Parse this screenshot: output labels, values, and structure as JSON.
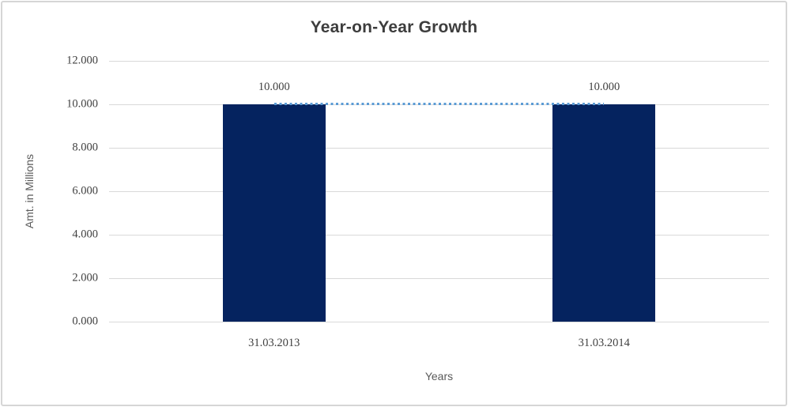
{
  "window": {
    "background": "#ffffff",
    "border_color": "#d6d6d6"
  },
  "chart_data": {
    "type": "bar",
    "title": "Year-on-Year Growth",
    "xlabel": "Years",
    "ylabel": "Amt. in Millions",
    "categories": [
      "31.03.2013",
      "31.03.2014"
    ],
    "series": [
      {
        "name": "column-series",
        "type": "column",
        "values": [
          10000,
          10000
        ],
        "data_labels": [
          "10.000",
          "10.000"
        ],
        "color": "#05235f"
      },
      {
        "name": "trend-line-series",
        "type": "dotted-line",
        "values": [
          10000,
          10000
        ],
        "color": "#5b9bd5"
      }
    ],
    "ylim": [
      0,
      12000
    ],
    "yticks": [
      {
        "value": 0,
        "label": "0.000"
      },
      {
        "value": 2000,
        "label": "2.000"
      },
      {
        "value": 4000,
        "label": "4.000"
      },
      {
        "value": 6000,
        "label": "6.000"
      },
      {
        "value": 8000,
        "label": "8.000"
      },
      {
        "value": 10000,
        "label": "10.000"
      },
      {
        "value": 12000,
        "label": "12.000"
      }
    ],
    "grid": true,
    "gridline_color": "#d9d9d9",
    "legend": "none",
    "title_color": "#3d3d3d",
    "axis_title_color": "#595959",
    "tick_label_color": "#404040"
  }
}
